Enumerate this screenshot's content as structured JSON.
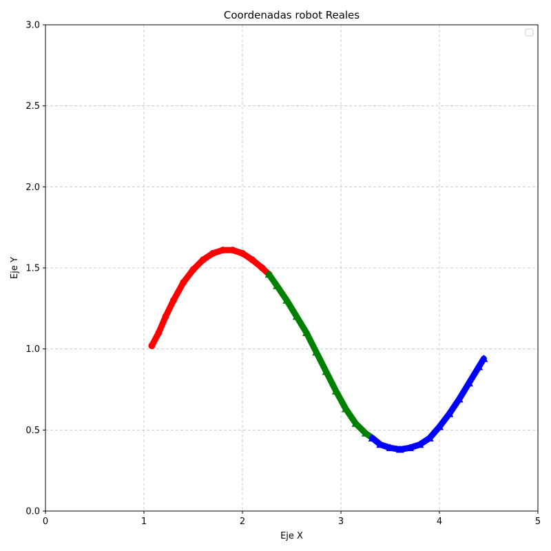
{
  "chart_data": {
    "type": "scatter",
    "title": "Coordenadas robot Reales",
    "xlabel": "Eje X",
    "ylabel": "Eje Y",
    "xlim": [
      0,
      5
    ],
    "ylim": [
      0,
      3
    ],
    "xticks": [
      "0",
      "1",
      "2",
      "3",
      "4",
      "5"
    ],
    "yticks": [
      "0.0",
      "0.5",
      "1.0",
      "1.5",
      "2.0",
      "2.5",
      "3.0"
    ],
    "grid": true,
    "legend": "top-right (empty)",
    "series": [
      {
        "color": "#ff0000",
        "marker": "circle",
        "x": [
          1.08,
          1.15,
          1.22,
          1.3,
          1.4,
          1.5,
          1.6,
          1.7,
          1.8,
          1.9,
          2.0,
          2.1,
          2.2,
          2.27
        ],
        "y": [
          1.02,
          1.1,
          1.2,
          1.3,
          1.41,
          1.49,
          1.55,
          1.59,
          1.61,
          1.61,
          1.59,
          1.55,
          1.5,
          1.46
        ]
      },
      {
        "color": "#008000",
        "marker": "triangle",
        "x": [
          2.27,
          2.35,
          2.45,
          2.55,
          2.65,
          2.75,
          2.85,
          2.95,
          3.05,
          3.15,
          3.25,
          3.32
        ],
        "y": [
          1.46,
          1.39,
          1.3,
          1.2,
          1.1,
          0.98,
          0.86,
          0.74,
          0.63,
          0.54,
          0.48,
          0.45
        ]
      },
      {
        "color": "#0000ff",
        "marker": "triangle",
        "x": [
          3.32,
          3.4,
          3.5,
          3.6,
          3.7,
          3.8,
          3.9,
          4.0,
          4.1,
          4.2,
          4.3,
          4.4,
          4.45
        ],
        "y": [
          0.45,
          0.41,
          0.39,
          0.38,
          0.39,
          0.41,
          0.45,
          0.52,
          0.6,
          0.69,
          0.79,
          0.89,
          0.94
        ]
      }
    ]
  }
}
